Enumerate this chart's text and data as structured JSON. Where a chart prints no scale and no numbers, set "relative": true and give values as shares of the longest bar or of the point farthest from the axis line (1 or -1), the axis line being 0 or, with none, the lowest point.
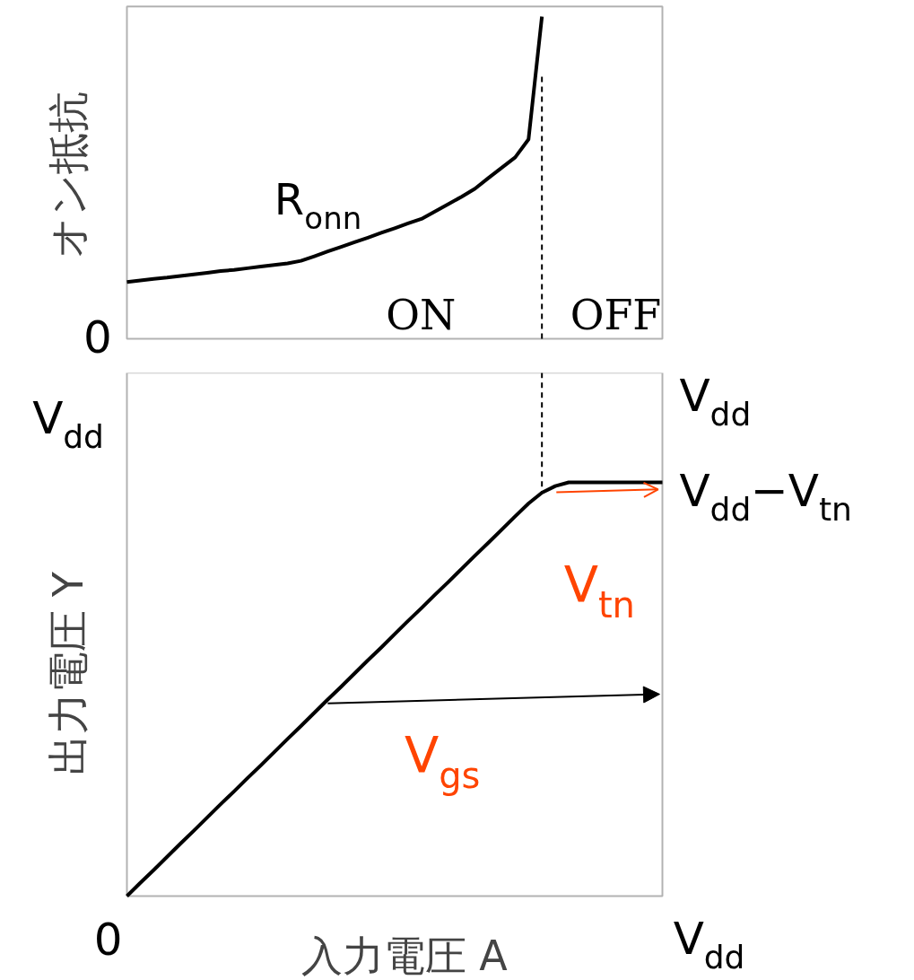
{
  "chart_data": [
    {
      "type": "line",
      "relative": true,
      "ylabel": "オン抵抗",
      "categories": [
        null,
        null,
        null,
        null,
        null,
        null,
        null,
        null,
        null,
        null,
        null,
        null,
        null,
        null,
        null,
        null,
        null,
        null,
        null,
        null,
        null,
        null,
        null,
        null,
        null,
        null,
        null,
        null,
        null,
        null,
        null,
        null,
        null,
        null,
        null,
        null,
        null,
        null,
        null,
        null,
        null
      ],
      "series": [
        {
          "color": "#000000",
          "values": [
            0.176,
            0.181,
            0.186,
            0.19,
            0.195,
            0.2,
            0.205,
            0.21,
            0.214,
            0.219,
            0.224,
            0.229,
            0.234,
            0.242,
            0.256,
            0.271,
            0.285,
            0.3,
            0.314,
            0.329,
            0.343,
            0.358,
            0.372,
            0.395,
            0.418,
            0.441,
            0.466,
            0.499,
            0.531,
            0.563,
            0.619,
            1.0,
            null,
            null,
            null,
            null,
            null,
            null,
            null,
            null,
            null
          ]
        }
      ],
      "annotations": [
        "0",
        "R$_{onn}$",
        "ON",
        "OFF"
      ]
    },
    {
      "type": "line",
      "relative": true,
      "xlabel": "入力電圧 A",
      "ylabel": "出力電圧 Y",
      "categories": [
        null,
        null,
        null,
        null,
        null,
        null,
        null,
        null,
        null,
        null,
        null,
        null,
        null,
        null,
        null,
        null,
        null,
        null,
        null,
        null,
        null,
        null,
        null,
        null,
        null,
        null,
        null,
        null,
        null,
        null,
        null,
        null,
        null,
        null,
        null,
        null,
        null,
        null,
        null,
        null,
        null
      ],
      "series": [
        {
          "color": "#000000",
          "values": [
            0.0,
            0.032,
            0.063,
            0.095,
            0.127,
            0.158,
            0.19,
            0.222,
            0.253,
            0.285,
            0.316,
            0.348,
            0.38,
            0.411,
            0.443,
            0.475,
            0.506,
            0.538,
            0.57,
            0.601,
            0.633,
            0.665,
            0.696,
            0.728,
            0.759,
            0.791,
            0.823,
            0.854,
            0.886,
            0.918,
            0.949,
            0.975,
            0.991,
            1,
            1,
            1,
            1,
            1,
            1,
            1,
            1
          ]
        }
      ],
      "annotations": [
        "0",
        "V$_{dd}$",
        "V$_{dd}$",
        "V$_{dd}$",
        "V$_{dd}$−V$_{tn}$",
        "V$_{gs}$",
        "V$_{tn}$"
      ]
    }
  ]
}
